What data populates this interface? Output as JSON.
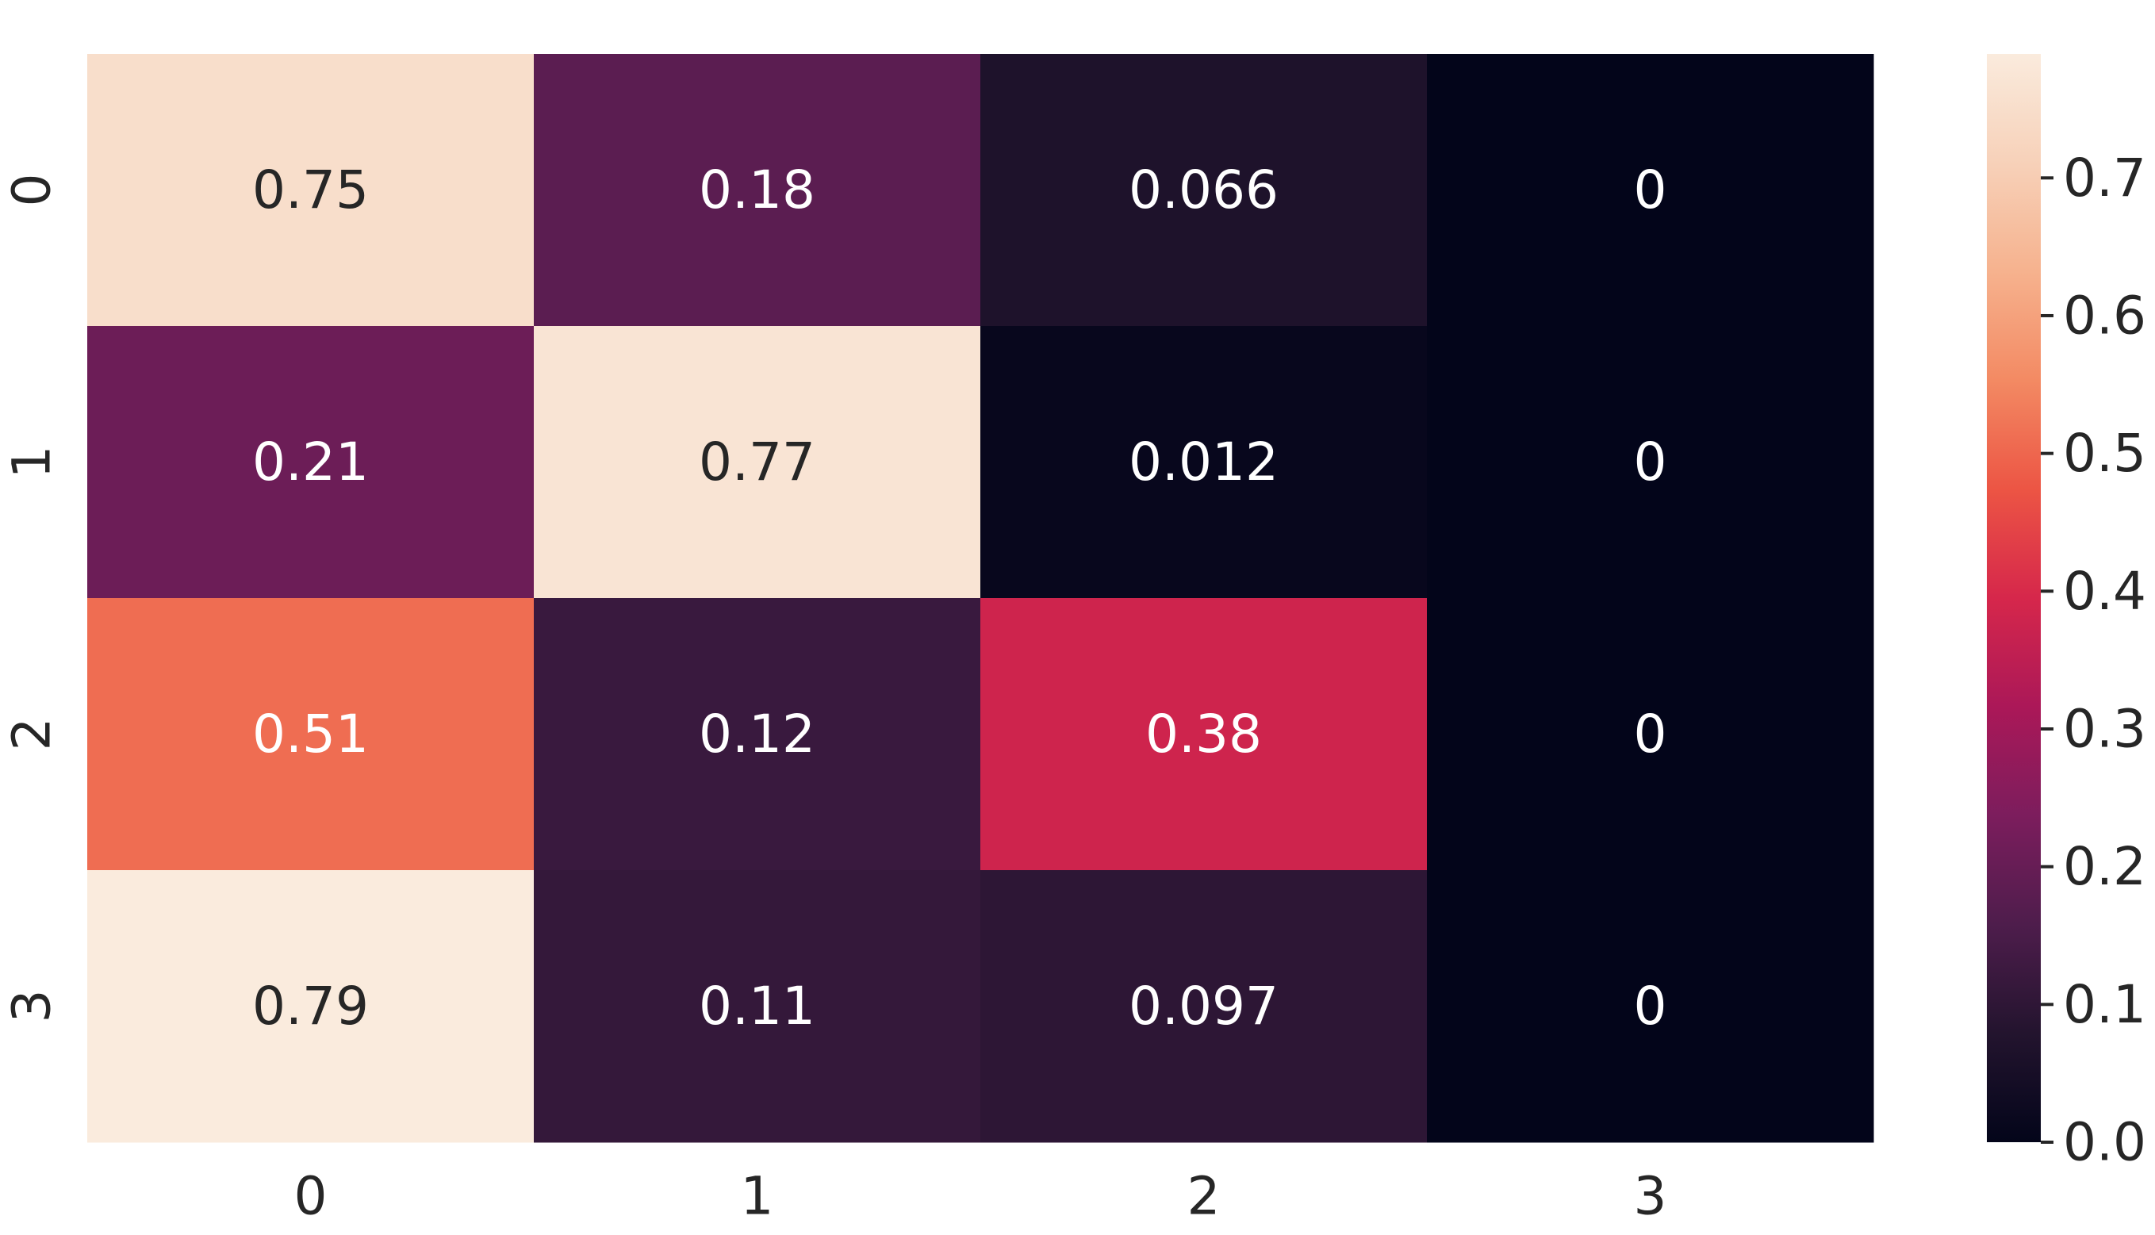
{
  "chart_data": {
    "type": "heatmap",
    "x_categories": [
      "0",
      "1",
      "2",
      "3"
    ],
    "y_categories": [
      "0",
      "1",
      "2",
      "3"
    ],
    "values": [
      [
        0.75,
        0.18,
        0.066,
        0
      ],
      [
        0.21,
        0.77,
        0.012,
        0
      ],
      [
        0.51,
        0.12,
        0.38,
        0
      ],
      [
        0.79,
        0.11,
        0.097,
        0
      ]
    ],
    "cell_labels": [
      [
        "0.75",
        "0.18",
        "0.066",
        "0"
      ],
      [
        "0.21",
        "0.77",
        "0.012",
        "0"
      ],
      [
        "0.51",
        "0.12",
        "0.38",
        "0"
      ],
      [
        "0.79",
        "0.11",
        "0.097",
        "0"
      ]
    ],
    "colormap": "rocket",
    "colorbar": {
      "range": [
        0,
        0.79
      ],
      "ticks": [
        0.0,
        0.1,
        0.2,
        0.3,
        0.4,
        0.5,
        0.6,
        0.7
      ],
      "tick_labels": [
        "0.0",
        "0.1",
        "0.2",
        "0.3",
        "0.4",
        "0.5",
        "0.6",
        "0.7"
      ],
      "placement": "right"
    },
    "title": "",
    "xlabel": "",
    "ylabel": "",
    "grid": false
  }
}
